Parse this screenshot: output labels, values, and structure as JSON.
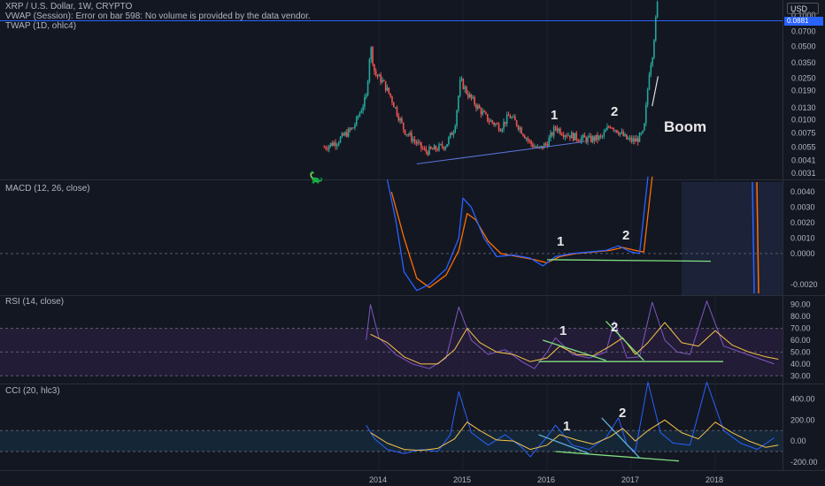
{
  "header": {
    "main_title": "XRP / U.S. Dollar, 1W, CRYPTO",
    "vwap_error": "VWAP (Session): Error on bar 598: No volume is provided by the data vendor.",
    "twap": "TWAP (1D, ohlc4)",
    "currency": "USD",
    "price_tag": "0.0881"
  },
  "indicators": {
    "macd": "MACD (12, 26, close)",
    "rsi": "RSI (14, close)",
    "cci": "CCI (20, hlc3)"
  },
  "annotations": {
    "price": [
      "1",
      "2",
      "Boom"
    ],
    "macd": [
      "1",
      "2"
    ],
    "rsi": [
      "1",
      "2"
    ],
    "cci": [
      "1",
      "2"
    ]
  },
  "colors": {
    "background": "#131722",
    "candle_up": "#26a69a",
    "candle_down": "#ef5350",
    "macd_line": "#2962ff",
    "signal_line": "#ff6d00",
    "rsi_line": "#7e57c2",
    "rsi_ma": "#f7c548",
    "cci_line": "#2962ff",
    "cci_ma": "#f7c548",
    "trendline_green": "#80e080",
    "trendline_blue": "#5b74d6",
    "hline_blue": "#2962ff"
  },
  "chart_data": [
    {
      "type": "candlestick",
      "title": "XRP / U.S. Dollar, 1W, CRYPTO",
      "scale": "log",
      "y_ticks": [
        "0.1000",
        "0.0700",
        "0.0500",
        "0.0350",
        "0.0250",
        "0.0190",
        "0.0130",
        "0.0100",
        "0.0075",
        "0.0055",
        "0.0041",
        "0.0031"
      ],
      "x_ticks": [
        "2014",
        "2015",
        "2016",
        "2017",
        "2018"
      ],
      "approx_close": [
        {
          "t": 2013.35,
          "v": 0.0055
        },
        {
          "t": 2013.5,
          "v": 0.0062
        },
        {
          "t": 2013.7,
          "v": 0.0085
        },
        {
          "t": 2013.85,
          "v": 0.0165
        },
        {
          "t": 2013.9,
          "v": 0.052
        },
        {
          "t": 2013.95,
          "v": 0.028
        },
        {
          "t": 2014.05,
          "v": 0.023
        },
        {
          "t": 2014.15,
          "v": 0.016
        },
        {
          "t": 2014.3,
          "v": 0.008
        },
        {
          "t": 2014.45,
          "v": 0.006
        },
        {
          "t": 2014.55,
          "v": 0.005
        },
        {
          "t": 2014.65,
          "v": 0.0052
        },
        {
          "t": 2014.8,
          "v": 0.0058
        },
        {
          "t": 2014.9,
          "v": 0.0085
        },
        {
          "t": 2014.97,
          "v": 0.024
        },
        {
          "t": 2015.05,
          "v": 0.018
        },
        {
          "t": 2015.15,
          "v": 0.014
        },
        {
          "t": 2015.3,
          "v": 0.01
        },
        {
          "t": 2015.45,
          "v": 0.0085
        },
        {
          "t": 2015.55,
          "v": 0.011
        },
        {
          "t": 2015.65,
          "v": 0.009
        },
        {
          "t": 2015.8,
          "v": 0.006
        },
        {
          "t": 2015.9,
          "v": 0.0052
        },
        {
          "t": 2016.0,
          "v": 0.006
        },
        {
          "t": 2016.1,
          "v": 0.0085
        },
        {
          "t": 2016.2,
          "v": 0.0075
        },
        {
          "t": 2016.35,
          "v": 0.0068
        },
        {
          "t": 2016.5,
          "v": 0.0065
        },
        {
          "t": 2016.65,
          "v": 0.0068
        },
        {
          "t": 2016.75,
          "v": 0.009
        },
        {
          "t": 2016.85,
          "v": 0.0078
        },
        {
          "t": 2016.95,
          "v": 0.0065
        },
        {
          "t": 2017.05,
          "v": 0.0063
        },
        {
          "t": 2017.15,
          "v": 0.0075
        },
        {
          "t": 2017.22,
          "v": 0.032
        },
        {
          "t": 2017.25,
          "v": 0.04
        },
        {
          "t": 2017.32,
          "v": 0.15
        }
      ]
    },
    {
      "type": "line",
      "title": "MACD (12, 26, close)",
      "y_ticks": [
        "0.0040",
        "0.0030",
        "0.0020",
        "0.0010",
        "0.0000",
        "-0.0020"
      ],
      "series": [
        {
          "name": "MACD",
          "points": [
            [
              2014.1,
              0.0048
            ],
            [
              2014.2,
              0.0022
            ],
            [
              2014.3,
              -0.0012
            ],
            [
              2014.45,
              -0.0024
            ],
            [
              2014.6,
              -0.002
            ],
            [
              2014.8,
              -0.001
            ],
            [
              2014.95,
              0.001
            ],
            [
              2015.0,
              0.0036
            ],
            [
              2015.1,
              0.003
            ],
            [
              2015.25,
              0.001
            ],
            [
              2015.4,
              -0.0002
            ],
            [
              2015.6,
              -0.0001
            ],
            [
              2015.8,
              -0.0003
            ],
            [
              2015.95,
              -0.0008
            ],
            [
              2016.1,
              -0.0002
            ],
            [
              2016.3,
              0.0
            ],
            [
              2016.5,
              0.0001
            ],
            [
              2016.7,
              0.0002
            ],
            [
              2016.85,
              0.0005
            ],
            [
              2017.0,
              0.0001
            ],
            [
              2017.1,
              0.0
            ],
            [
              2017.2,
              0.005
            ]
          ]
        },
        {
          "name": "Signal",
          "points": [
            [
              2014.15,
              0.004
            ],
            [
              2014.3,
              0.001
            ],
            [
              2014.45,
              -0.0016
            ],
            [
              2014.6,
              -0.0022
            ],
            [
              2014.8,
              -0.0014
            ],
            [
              2014.95,
              0.0002
            ],
            [
              2015.05,
              0.0026
            ],
            [
              2015.15,
              0.0022
            ],
            [
              2015.3,
              0.0008
            ],
            [
              2015.45,
              0.0
            ],
            [
              2015.65,
              -0.0002
            ],
            [
              2015.85,
              -0.0004
            ],
            [
              2016.0,
              -0.0006
            ],
            [
              2016.15,
              -0.0002
            ],
            [
              2016.35,
              0.0
            ],
            [
              2016.55,
              0.0001
            ],
            [
              2016.75,
              0.0002
            ],
            [
              2016.9,
              0.0004
            ],
            [
              2017.05,
              0.0002
            ],
            [
              2017.15,
              0.0001
            ],
            [
              2017.25,
              0.005
            ]
          ]
        }
      ]
    },
    {
      "type": "line",
      "title": "RSI (14, close)",
      "y_ticks": [
        "90.00",
        "80.00",
        "70.00",
        "60.00",
        "50.00",
        "40.00",
        "30.00"
      ],
      "band": [
        30,
        70
      ],
      "series": [
        {
          "name": "RSI",
          "points": [
            [
              2013.85,
              60
            ],
            [
              2013.9,
              90
            ],
            [
              2014.0,
              62
            ],
            [
              2014.2,
              48
            ],
            [
              2014.4,
              40
            ],
            [
              2014.6,
              36
            ],
            [
              2014.8,
              45
            ],
            [
              2014.95,
              88
            ],
            [
              2015.1,
              60
            ],
            [
              2015.3,
              48
            ],
            [
              2015.5,
              52
            ],
            [
              2015.7,
              42
            ],
            [
              2015.85,
              36
            ],
            [
              2016.0,
              50
            ],
            [
              2016.1,
              62
            ],
            [
              2016.3,
              48
            ],
            [
              2016.5,
              45
            ],
            [
              2016.7,
              50
            ],
            [
              2016.8,
              76
            ],
            [
              2016.95,
              45
            ],
            [
              2017.1,
              46
            ],
            [
              2017.25,
              92
            ],
            [
              2017.4,
              60
            ],
            [
              2017.55,
              50
            ],
            [
              2017.7,
              48
            ],
            [
              2017.9,
              93
            ],
            [
              2018.1,
              55
            ],
            [
              2018.3,
              50
            ],
            [
              2018.5,
              45
            ],
            [
              2018.7,
              40
            ]
          ]
        },
        {
          "name": "RSI MA",
          "points": [
            [
              2013.9,
              65
            ],
            [
              2014.1,
              58
            ],
            [
              2014.3,
              46
            ],
            [
              2014.5,
              40
            ],
            [
              2014.7,
              40
            ],
            [
              2014.9,
              52
            ],
            [
              2015.05,
              70
            ],
            [
              2015.2,
              58
            ],
            [
              2015.4,
              50
            ],
            [
              2015.6,
              48
            ],
            [
              2015.8,
              42
            ],
            [
              2016.0,
              45
            ],
            [
              2016.15,
              55
            ],
            [
              2016.35,
              48
            ],
            [
              2016.55,
              47
            ],
            [
              2016.75,
              55
            ],
            [
              2016.9,
              62
            ],
            [
              2017.05,
              48
            ],
            [
              2017.2,
              58
            ],
            [
              2017.4,
              75
            ],
            [
              2017.6,
              58
            ],
            [
              2017.8,
              55
            ],
            [
              2018.0,
              68
            ],
            [
              2018.2,
              56
            ],
            [
              2018.4,
              50
            ],
            [
              2018.6,
              46
            ],
            [
              2018.75,
              44
            ]
          ]
        }
      ]
    },
    {
      "type": "line",
      "title": "CCI (20, hlc3)",
      "y_ticks": [
        "400.00",
        "200.00",
        "0.00",
        "-200.00"
      ],
      "band": [
        -100,
        100
      ],
      "series": [
        {
          "name": "CCI",
          "points": [
            [
              2013.85,
              150
            ],
            [
              2013.95,
              20
            ],
            [
              2014.1,
              -80
            ],
            [
              2014.3,
              -120
            ],
            [
              2014.5,
              -80
            ],
            [
              2014.7,
              -100
            ],
            [
              2014.85,
              60
            ],
            [
              2014.95,
              470
            ],
            [
              2015.1,
              80
            ],
            [
              2015.3,
              -40
            ],
            [
              2015.5,
              60
            ],
            [
              2015.7,
              -60
            ],
            [
              2015.8,
              -150
            ],
            [
              2016.0,
              40
            ],
            [
              2016.1,
              150
            ],
            [
              2016.3,
              -40
            ],
            [
              2016.5,
              -80
            ],
            [
              2016.7,
              30
            ],
            [
              2016.85,
              220
            ],
            [
              2016.95,
              -40
            ],
            [
              2017.05,
              -100
            ],
            [
              2017.2,
              560
            ],
            [
              2017.35,
              80
            ],
            [
              2017.5,
              -20
            ],
            [
              2017.7,
              -40
            ],
            [
              2017.9,
              560
            ],
            [
              2018.1,
              100
            ],
            [
              2018.3,
              -20
            ],
            [
              2018.5,
              -80
            ],
            [
              2018.7,
              30
            ]
          ]
        },
        {
          "name": "CCI MA",
          "points": [
            [
              2013.9,
              80
            ],
            [
              2014.1,
              -20
            ],
            [
              2014.3,
              -80
            ],
            [
              2014.5,
              -90
            ],
            [
              2014.7,
              -70
            ],
            [
              2014.9,
              20
            ],
            [
              2015.05,
              180
            ],
            [
              2015.2,
              100
            ],
            [
              2015.4,
              10
            ],
            [
              2015.6,
              0
            ],
            [
              2015.8,
              -80
            ],
            [
              2016.0,
              -40
            ],
            [
              2016.15,
              60
            ],
            [
              2016.35,
              10
            ],
            [
              2016.55,
              -30
            ],
            [
              2016.75,
              40
            ],
            [
              2016.9,
              120
            ],
            [
              2017.05,
              0
            ],
            [
              2017.2,
              100
            ],
            [
              2017.4,
              200
            ],
            [
              2017.6,
              80
            ],
            [
              2017.8,
              20
            ],
            [
              2018.0,
              180
            ],
            [
              2018.2,
              80
            ],
            [
              2018.4,
              0
            ],
            [
              2018.6,
              -60
            ],
            [
              2018.75,
              -40
            ]
          ]
        }
      ]
    }
  ]
}
